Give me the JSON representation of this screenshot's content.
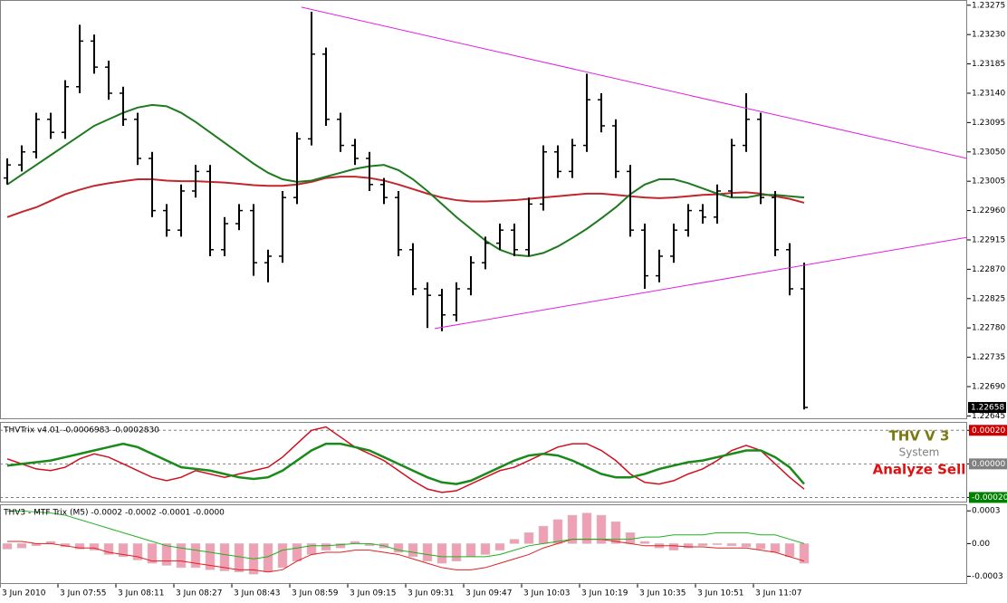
{
  "chart_data": [
    {
      "type": "candlestick",
      "categories": [
        "3 Jun 2010",
        null,
        null,
        null,
        "3 Jun 07:55",
        null,
        null,
        null,
        "3 Jun 08:11",
        null,
        null,
        null,
        "3 Jun 08:27",
        null,
        null,
        null,
        "3 Jun 08:43",
        null,
        null,
        null,
        "3 Jun 08:59",
        null,
        null,
        null,
        "3 Jun 09:15",
        null,
        null,
        null,
        "3 Jun 09:31",
        null,
        null,
        null,
        "3 Jun 09:47",
        null,
        null,
        null,
        "3 Jun 10:03",
        null,
        null,
        null,
        "3 Jun 10:19",
        null,
        null,
        null,
        "3 Jun 10:35",
        null,
        null,
        null,
        "3 Jun 10:51",
        null,
        null,
        null,
        "3 Jun 11:07",
        null,
        null,
        null
      ],
      "color": "#000000",
      "open": [
        1.2301,
        1.2303,
        1.2305,
        1.231,
        1.2308,
        1.2315,
        1.2322,
        1.2318,
        1.2314,
        1.231,
        1.2304,
        1.2296,
        1.2293,
        1.2299,
        1.2302,
        1.229,
        1.2294,
        1.2296,
        1.2288,
        1.2289,
        1.2298,
        1.2307,
        1.232,
        1.231,
        1.2306,
        1.2304,
        1.23,
        1.2298,
        1.229,
        1.2284,
        1.2283,
        1.228,
        1.2284,
        1.2288,
        1.2291,
        1.2293,
        1.229,
        1.2297,
        1.2305,
        1.2302,
        1.2306,
        1.2313,
        1.2309,
        1.2302,
        1.2293,
        1.2286,
        1.2289,
        1.2293,
        1.2296,
        1.2295,
        1.2299,
        1.2306,
        1.231,
        1.2298,
        1.229,
        1.2284
      ],
      "high": [
        1.2304,
        1.2306,
        1.2311,
        1.2311,
        1.2316,
        1.23245,
        1.2323,
        1.2319,
        1.2315,
        1.2311,
        1.2305,
        1.2297,
        1.23,
        1.2303,
        1.2303,
        1.2295,
        1.2297,
        1.2297,
        1.229,
        1.2299,
        1.2308,
        1.23265,
        1.2321,
        1.2311,
        1.2307,
        1.2305,
        1.2301,
        1.2299,
        1.2291,
        1.2285,
        1.2284,
        1.2285,
        1.2289,
        1.2292,
        1.2294,
        1.2294,
        1.2298,
        1.2306,
        1.2306,
        1.2307,
        1.2317,
        1.2314,
        1.231,
        1.2303,
        1.2294,
        1.229,
        1.2294,
        1.2297,
        1.2297,
        1.23,
        1.2307,
        1.2314,
        1.2311,
        1.2299,
        1.2291,
        1.2288
      ],
      "low": [
        1.23,
        1.2302,
        1.2304,
        1.2307,
        1.2307,
        1.2314,
        1.2317,
        1.2313,
        1.2309,
        1.2303,
        1.2295,
        1.2292,
        1.2292,
        1.2298,
        1.2289,
        1.2289,
        1.2293,
        1.2286,
        1.2285,
        1.2288,
        1.2297,
        1.2306,
        1.2309,
        1.2305,
        1.2303,
        1.2299,
        1.2297,
        1.2289,
        1.2283,
        1.2278,
        1.22775,
        1.2279,
        1.2283,
        1.2287,
        1.229,
        1.2289,
        1.2289,
        1.2296,
        1.2301,
        1.2301,
        1.2305,
        1.2308,
        1.2301,
        1.2292,
        1.2284,
        1.2285,
        1.2288,
        1.2292,
        1.2294,
        1.2294,
        1.2298,
        1.2305,
        1.2297,
        1.2289,
        1.2283,
        1.22655
      ],
      "close": [
        1.2303,
        1.2305,
        1.231,
        1.2308,
        1.2315,
        1.2322,
        1.2318,
        1.2314,
        1.231,
        1.2304,
        1.2296,
        1.2293,
        1.2299,
        1.2302,
        1.229,
        1.2294,
        1.2296,
        1.2288,
        1.2289,
        1.2298,
        1.2307,
        1.232,
        1.231,
        1.2306,
        1.2304,
        1.23,
        1.2298,
        1.229,
        1.2284,
        1.2283,
        1.228,
        1.2284,
        1.2288,
        1.2291,
        1.2293,
        1.229,
        1.2297,
        1.2305,
        1.2302,
        1.2306,
        1.2313,
        1.2309,
        1.2302,
        1.2293,
        1.2286,
        1.2289,
        1.2293,
        1.2296,
        1.2295,
        1.2299,
        1.2306,
        1.231,
        1.2298,
        1.229,
        1.2284,
        1.22658
      ],
      "lines": [
        {
          "color": "#c0282e",
          "values": [
            1.2295,
            1.22958,
            1.22965,
            1.22975,
            1.22985,
            1.22992,
            1.22998,
            1.23002,
            1.23005,
            1.23008,
            1.23008,
            1.23006,
            1.23005,
            1.23005,
            1.23004,
            1.23003,
            1.23001,
            1.22999,
            1.22998,
            1.22998,
            1.23,
            1.23004,
            1.2301,
            1.23012,
            1.23012,
            1.2301,
            1.23006,
            1.23,
            1.22993,
            1.22986,
            1.2298,
            1.22976,
            1.22974,
            1.22974,
            1.22975,
            1.22976,
            1.22978,
            1.2298,
            1.22982,
            1.22984,
            1.22986,
            1.22986,
            1.22984,
            1.22982,
            1.2298,
            1.22979,
            1.2298,
            1.22982,
            1.22984,
            1.22985,
            1.22987,
            1.22988,
            1.22986,
            1.22982,
            1.22978,
            1.22972
          ]
        },
        {
          "color": "#1e7a1e",
          "values": [
            1.23,
            1.23015,
            1.2303,
            1.23045,
            1.2306,
            1.23075,
            1.2309,
            1.231,
            1.2311,
            1.23118,
            1.23122,
            1.2312,
            1.2311,
            1.23096,
            1.2308,
            1.23064,
            1.23048,
            1.23032,
            1.23018,
            1.23008,
            1.23004,
            1.23006,
            1.23012,
            1.23018,
            1.23024,
            1.23028,
            1.2303,
            1.23022,
            1.23008,
            1.2299,
            1.2297,
            1.2295,
            1.22932,
            1.22914,
            1.229,
            1.22892,
            1.2289,
            1.22895,
            1.22905,
            1.22918,
            1.22932,
            1.22948,
            1.22965,
            1.22985,
            1.23,
            1.23008,
            1.23008,
            1.23002,
            1.22994,
            1.22986,
            1.2298,
            1.2298,
            1.22984,
            1.22984,
            1.22982,
            1.2298
          ]
        }
      ],
      "trendlines": [
        {
          "color": "#e020e0",
          "x": [
            20.3,
            66.25
          ],
          "y": [
            1.23272,
            1.2304
          ]
        },
        {
          "color": "#e020e0",
          "x": [
            29.5,
            66.25
          ],
          "y": [
            1.22779,
            1.22919
          ]
        }
      ],
      "last_price": 1.22658,
      "ylim": [
        1.2264,
        1.23283
      ],
      "yticks": [
        1.23275,
        {
          "value": 1.2323,
          "label": "1.23230"
        },
        1.23185,
        {
          "value": 1.2314,
          "label": "1.23140"
        },
        1.23095,
        {
          "value": 1.2305,
          "label": "1.23050"
        },
        1.23005,
        {
          "value": 1.2296,
          "label": "1.22960"
        },
        1.22915,
        {
          "value": 1.2287,
          "label": "1.22870"
        },
        1.22825,
        {
          "value": 1.2278,
          "label": "1.22780"
        },
        1.22735,
        {
          "value": 1.2269,
          "label": "1.22690"
        },
        1.22645
      ]
    },
    {
      "type": "line",
      "label": "THVTrix v4.01 -0.0006983 -0.0002830",
      "series": [
        {
          "color": "#d01020",
          "values": [
            3e-05,
            0.0,
            -3e-05,
            -4e-05,
            -2e-05,
            3e-05,
            6e-05,
            4e-05,
            0.0,
            -4e-05,
            -8e-05,
            -0.0001,
            -8e-05,
            -4e-05,
            -6e-05,
            -8e-05,
            -6e-05,
            -4e-05,
            -2e-05,
            4e-05,
            0.00012,
            0.0002,
            0.00022,
            0.00016,
            0.0001,
            6e-05,
            2e-05,
            -4e-05,
            -0.0001,
            -0.00015,
            -0.00017,
            -0.00016,
            -0.00012,
            -8e-05,
            -4e-05,
            -2e-05,
            2e-05,
            6e-05,
            0.0001,
            0.00012,
            0.00012,
            8e-05,
            2e-05,
            -6e-05,
            -0.00011,
            -0.00012,
            -0.0001,
            -6e-05,
            -3e-05,
            2e-05,
            8e-05,
            0.00011,
            8e-05,
            0.0,
            -8e-05,
            -0.00015
          ]
        },
        {
          "color": "#1a8a1a",
          "values": [
            -1e-05,
            0.0,
            1e-05,
            2e-05,
            4e-05,
            6e-05,
            8e-05,
            0.0001,
            0.00012,
            0.0001,
            6e-05,
            2e-05,
            -2e-05,
            -3e-05,
            -4e-05,
            -6e-05,
            -8e-05,
            -9e-05,
            -8e-05,
            -4e-05,
            2e-05,
            8e-05,
            0.00012,
            0.00012,
            0.0001,
            8e-05,
            4e-05,
            0.0,
            -4e-05,
            -8e-05,
            -0.00011,
            -0.00012,
            -0.0001,
            -6e-05,
            -2e-05,
            2e-05,
            5e-05,
            6e-05,
            5e-05,
            2e-05,
            -2e-05,
            -6e-05,
            -8e-05,
            -8e-05,
            -6e-05,
            -3e-05,
            -1e-05,
            1e-05,
            2e-05,
            4e-05,
            6e-05,
            8e-05,
            8e-05,
            4e-05,
            -2e-05,
            -0.00012
          ]
        }
      ],
      "annotations": [
        {
          "text": "THV V 3",
          "color": "#7a7a10"
        },
        {
          "text": "System",
          "color": "#808080"
        },
        {
          "text": "Analyze Sell",
          "color": "#e01010"
        }
      ],
      "ylim": [
        -0.00023,
        0.00025
      ],
      "yticks": [
        {
          "value": 0.0002,
          "label": "0.00020"
        },
        {
          "value": 0,
          "label": "0.00000"
        },
        {
          "value": -0.0002,
          "label": "-0.00020"
        }
      ],
      "ytick_colors": [
        "#cc0000",
        "#808080",
        "#008000"
      ]
    },
    {
      "type": "bar",
      "label": "THV3 - MTF Trix (M5) -0.0002 -0.0002 -0.0001 -0.0000",
      "color": "#f0a0b4",
      "values": [
        -5e-05,
        -4e-05,
        -2e-05,
        2e-05,
        -3e-05,
        -5e-05,
        -6e-05,
        -0.0001,
        -0.00012,
        -0.00015,
        -0.00018,
        -0.0002,
        -0.00022,
        -0.00022,
        -0.00024,
        -0.00025,
        -0.00026,
        -0.00028,
        -0.00026,
        -0.00022,
        -0.00016,
        -0.0001,
        -6e-05,
        -4e-05,
        2e-05,
        -2e-05,
        -4e-05,
        -8e-05,
        -0.00012,
        -0.00016,
        -0.00018,
        -0.00016,
        -0.00012,
        -0.0001,
        -6e-05,
        4e-05,
        0.0001,
        0.00016,
        0.00022,
        0.00026,
        0.00028,
        0.00026,
        0.0002,
        0.0001,
        2e-05,
        -4e-05,
        -6e-05,
        -4e-05,
        -2e-05,
        -1e-05,
        -2e-05,
        -3e-05,
        -5e-05,
        -8e-05,
        -0.00012,
        -0.00018
      ],
      "series": [
        {
          "color": "#e02020",
          "values": [
            2e-05,
            2e-05,
            0.0,
            0.0,
            -2e-05,
            -4e-05,
            -4e-05,
            -8e-05,
            -0.0001,
            -0.00012,
            -0.00016,
            -0.00016,
            -0.00016,
            -0.00018,
            -0.0002,
            -0.00022,
            -0.00024,
            -0.00024,
            -0.00026,
            -0.00024,
            -0.00016,
            -0.0001,
            -8e-05,
            -8e-05,
            -6e-05,
            -6e-05,
            -8e-05,
            -0.0001,
            -0.00014,
            -0.00018,
            -0.00022,
            -0.00024,
            -0.00024,
            -0.00022,
            -0.00018,
            -0.00014,
            -0.0001,
            -4e-05,
            0.0,
            4e-05,
            4e-05,
            4e-05,
            2e-05,
            0.0,
            -2e-05,
            -2e-05,
            -2e-05,
            -3e-05,
            -3e-05,
            -4e-05,
            -4e-05,
            -4e-05,
            -6e-05,
            -8e-05,
            -0.00012,
            -0.00016
          ]
        },
        {
          "color": "#20b020",
          "values": [
            0.0003,
            0.0003,
            0.00029,
            0.00028,
            0.00026,
            0.00022,
            0.00018,
            0.00014,
            0.0001,
            6e-05,
            2e-05,
            -2e-05,
            -4e-05,
            -6e-05,
            -8e-05,
            -0.0001,
            -0.00012,
            -0.00014,
            -0.00012,
            -6e-05,
            -4e-05,
            -2e-05,
            -2e-05,
            -1e-05,
            0.0,
            0.0,
            -2e-05,
            -6e-05,
            -8e-05,
            -0.0001,
            -0.00012,
            -0.00012,
            -0.00012,
            -0.00012,
            -0.0001,
            -6e-05,
            -2e-05,
            0.0,
            2e-05,
            4e-05,
            4e-05,
            4e-05,
            4e-05,
            4e-05,
            6e-05,
            6e-05,
            8e-05,
            8e-05,
            8e-05,
            0.0001,
            0.0001,
            0.0001,
            8e-05,
            8e-05,
            4e-05,
            0.0
          ]
        }
      ],
      "ylim": [
        -0.00037,
        0.00036
      ],
      "yticks": [
        0.0003,
        {
          "value": 0,
          "label": "0.00"
        },
        -0.0003
      ]
    }
  ]
}
